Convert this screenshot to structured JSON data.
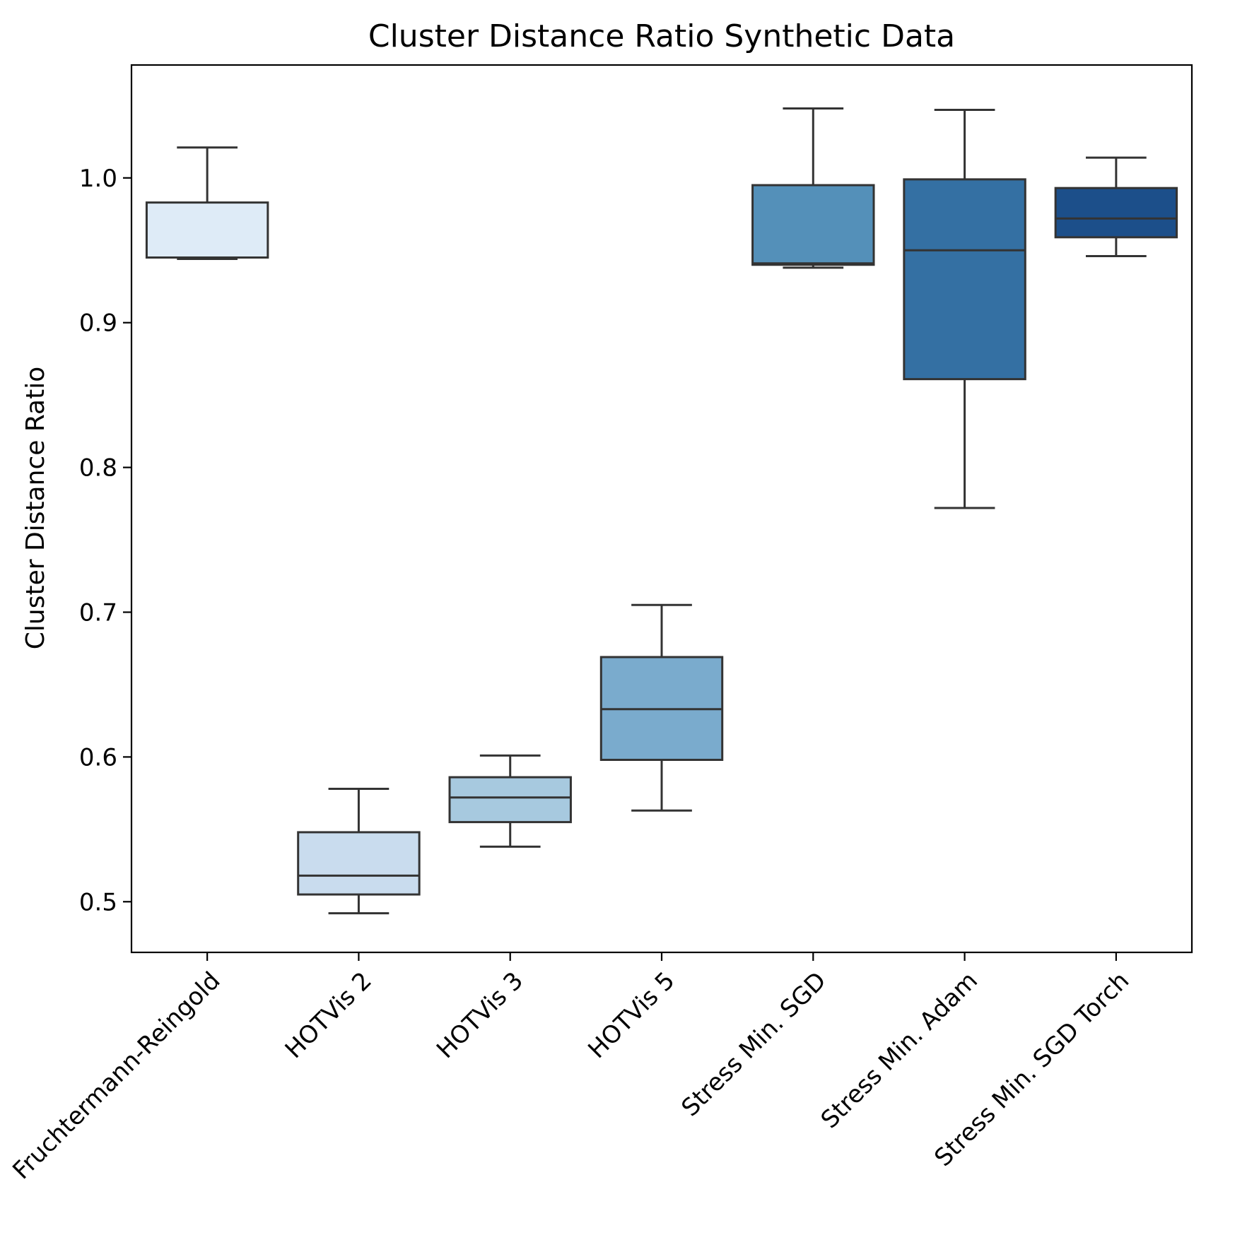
{
  "chart_data": {
    "type": "box",
    "title": "Cluster Distance Ratio Synthetic Data",
    "xlabel": "",
    "ylabel": "Cluster Distance Ratio",
    "ylim": [
      0.465,
      1.078
    ],
    "yticks": [
      0.5,
      0.6,
      0.7,
      0.8,
      0.9,
      1.0
    ],
    "ytick_labels": [
      "0.5",
      "0.6",
      "0.7",
      "0.8",
      "0.9",
      "1.0"
    ],
    "grid": false,
    "legend": "none",
    "colormap": "Blues",
    "edge_color": "#333333",
    "categories": [
      {
        "label": "Fruchtermann-Reingold",
        "whislo": 0.944,
        "q1": 0.945,
        "med": 0.945,
        "q3": 0.983,
        "whishi": 1.021,
        "color": "#deebf7"
      },
      {
        "label": "HOTVis 2",
        "whislo": 0.492,
        "q1": 0.505,
        "med": 0.518,
        "q3": 0.548,
        "whishi": 0.578,
        "color": "#c9dcee"
      },
      {
        "label": "HOTVis 3",
        "whislo": 0.538,
        "q1": 0.555,
        "med": 0.572,
        "q3": 0.586,
        "whishi": 0.601,
        "color": "#a7c9df"
      },
      {
        "label": "HOTVis 5",
        "whislo": 0.563,
        "q1": 0.598,
        "med": 0.633,
        "q3": 0.669,
        "whishi": 0.705,
        "color": "#7aabcd"
      },
      {
        "label": "Stress Min. SGD",
        "whislo": 0.938,
        "q1": 0.94,
        "med": 0.941,
        "q3": 0.995,
        "whishi": 1.048,
        "color": "#5490b9"
      },
      {
        "label": "Stress Min. Adam",
        "whislo": 0.772,
        "q1": 0.861,
        "med": 0.95,
        "q3": 0.999,
        "whishi": 1.047,
        "color": "#3470a3"
      },
      {
        "label": "Stress Min. SGD Torch",
        "whislo": 0.946,
        "q1": 0.959,
        "med": 0.972,
        "q3": 0.993,
        "whishi": 1.014,
        "color": "#1c4f8a"
      }
    ]
  }
}
